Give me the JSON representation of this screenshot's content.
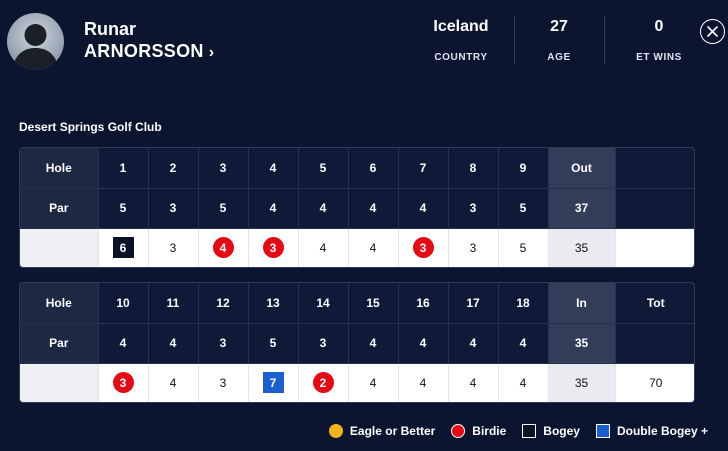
{
  "player": {
    "first_name": "Runar",
    "last_name": "ARNORSSON",
    "chevron": "›"
  },
  "stats": [
    {
      "value": "Iceland",
      "label": "COUNTRY"
    },
    {
      "value": "27",
      "label": "AGE"
    },
    {
      "value": "0",
      "label": "ET WINS"
    }
  ],
  "course": "Desert Springs Golf Club",
  "front": {
    "hole_label": "Hole",
    "par_label": "Par",
    "sum_label": "Out",
    "holes": [
      "1",
      "2",
      "3",
      "4",
      "5",
      "6",
      "7",
      "8",
      "9"
    ],
    "pars": [
      "5",
      "3",
      "5",
      "4",
      "4",
      "4",
      "4",
      "3",
      "5"
    ],
    "par_total": "37",
    "scores": [
      "6",
      "3",
      "4",
      "3",
      "4",
      "4",
      "3",
      "3",
      "5"
    ],
    "types": [
      "bogey",
      "",
      "birdie",
      "birdie",
      "",
      "",
      "birdie",
      "",
      ""
    ],
    "score_total": "35"
  },
  "back": {
    "hole_label": "Hole",
    "par_label": "Par",
    "sum_label": "In",
    "tot_label": "Tot",
    "holes": [
      "10",
      "11",
      "12",
      "13",
      "14",
      "15",
      "16",
      "17",
      "18"
    ],
    "pars": [
      "4",
      "4",
      "3",
      "5",
      "3",
      "4",
      "4",
      "4",
      "4"
    ],
    "par_total": "35",
    "scores": [
      "3",
      "4",
      "3",
      "7",
      "2",
      "4",
      "4",
      "4",
      "4"
    ],
    "types": [
      "birdie",
      "",
      "",
      "double",
      "birdie",
      "",
      "",
      "",
      ""
    ],
    "score_total": "35",
    "grand_total": "70"
  },
  "legend": [
    {
      "label": "Eagle or Better",
      "type": "eagle",
      "color": "#f2b31b"
    },
    {
      "label": "Birdie",
      "type": "birdie",
      "color": "#e50914"
    },
    {
      "label": "Bogey",
      "type": "bogey",
      "color": "#0a1228"
    },
    {
      "label": "Double Bogey +",
      "type": "double",
      "color": "#1a5fd1"
    }
  ],
  "icons": {
    "close": "close-icon",
    "avatar": "player-avatar-icon"
  }
}
